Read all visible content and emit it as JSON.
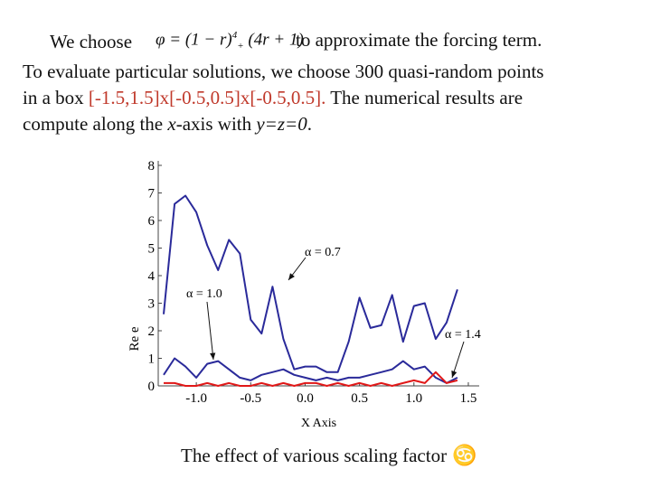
{
  "intro": {
    "prefix": "We choose",
    "formula_lhs": "φ =",
    "formula_rhs": "(1 − r)",
    "formula_sub": "+",
    "formula_sup": "4",
    "formula_tail": "(4r + 1)",
    "suffix": "to approximate the forcing term."
  },
  "paragraph": {
    "line1": "To evaluate particular solutions, we choose 300 quasi-random points",
    "line2_pre": "in a box ",
    "line2_box": "[-1.5,1.5]x[-0.5,0.5]x[-0.5,0.5].",
    "line2_post": " The numerical results are",
    "line3_pre": "compute along the ",
    "line3_x": "x",
    "line3_mid": "-axis with ",
    "line3_yz": "y=z=0",
    "line3_end": "."
  },
  "colors": {
    "accent_red": "#c0392b",
    "series_blue": "#2a2a9a",
    "series_red": "#e01818"
  },
  "chart_data": {
    "type": "line",
    "xlabel": "X Axis",
    "ylabel": "Re e",
    "xlim": [
      -1.35,
      1.6
    ],
    "ylim": [
      0,
      8
    ],
    "xticks": [
      "-1.0",
      "-0.5",
      "0.0",
      "0.5",
      "1.0",
      "1.5"
    ],
    "yticks": [
      "0",
      "1",
      "2",
      "3",
      "4",
      "5",
      "6",
      "7",
      "8"
    ],
    "grid": false,
    "annotations": [
      "α = 0.7",
      "α = 1.0",
      "α = 1.4"
    ],
    "series": [
      {
        "label": "α = 0.7",
        "color": "#2a2a9a",
        "x": [
          -1.3,
          -1.2,
          -1.1,
          -1.0,
          -0.9,
          -0.8,
          -0.7,
          -0.6,
          -0.5,
          -0.4,
          -0.3,
          -0.2,
          -0.1,
          0.0,
          0.1,
          0.2,
          0.3,
          0.4,
          0.5,
          0.6,
          0.7,
          0.8,
          0.9,
          1.0,
          1.1,
          1.2,
          1.3,
          1.4
        ],
        "y": [
          2.6,
          6.6,
          6.9,
          6.3,
          5.1,
          4.2,
          5.3,
          4.8,
          2.4,
          1.9,
          3.6,
          1.7,
          0.6,
          0.7,
          0.7,
          0.5,
          0.5,
          1.6,
          3.2,
          2.1,
          2.2,
          3.3,
          1.6,
          2.9,
          3.0,
          1.7,
          2.3,
          3.5
        ]
      },
      {
        "label": "α = 1.0",
        "color": "#2a2a9a",
        "x": [
          -1.3,
          -1.2,
          -1.1,
          -1.0,
          -0.9,
          -0.8,
          -0.7,
          -0.6,
          -0.5,
          -0.4,
          -0.3,
          -0.2,
          -0.1,
          0.0,
          0.1,
          0.2,
          0.3,
          0.4,
          0.5,
          0.6,
          0.7,
          0.8,
          0.9,
          1.0,
          1.1,
          1.2,
          1.3,
          1.4
        ],
        "y": [
          0.4,
          1.0,
          0.7,
          0.3,
          0.8,
          0.9,
          0.6,
          0.3,
          0.2,
          0.4,
          0.5,
          0.6,
          0.4,
          0.3,
          0.2,
          0.3,
          0.2,
          0.3,
          0.3,
          0.4,
          0.5,
          0.6,
          0.9,
          0.6,
          0.7,
          0.3,
          0.1,
          0.3
        ]
      },
      {
        "label": "α = 1.4",
        "color": "#e01818",
        "x": [
          -1.3,
          -1.2,
          -1.1,
          -1.0,
          -0.9,
          -0.8,
          -0.7,
          -0.6,
          -0.5,
          -0.4,
          -0.3,
          -0.2,
          -0.1,
          0.0,
          0.1,
          0.2,
          0.3,
          0.4,
          0.5,
          0.6,
          0.7,
          0.8,
          0.9,
          1.0,
          1.1,
          1.2,
          1.3,
          1.4
        ],
        "y": [
          0.1,
          0.1,
          0.0,
          0.0,
          0.1,
          0.0,
          0.1,
          0.0,
          0.0,
          0.1,
          0.0,
          0.1,
          0.0,
          0.1,
          0.1,
          0.0,
          0.1,
          0.0,
          0.1,
          0.0,
          0.1,
          0.0,
          0.1,
          0.2,
          0.1,
          0.5,
          0.1,
          0.2
        ]
      }
    ]
  },
  "caption": {
    "text": "The effect of various scaling factor",
    "symbol": "♋"
  }
}
